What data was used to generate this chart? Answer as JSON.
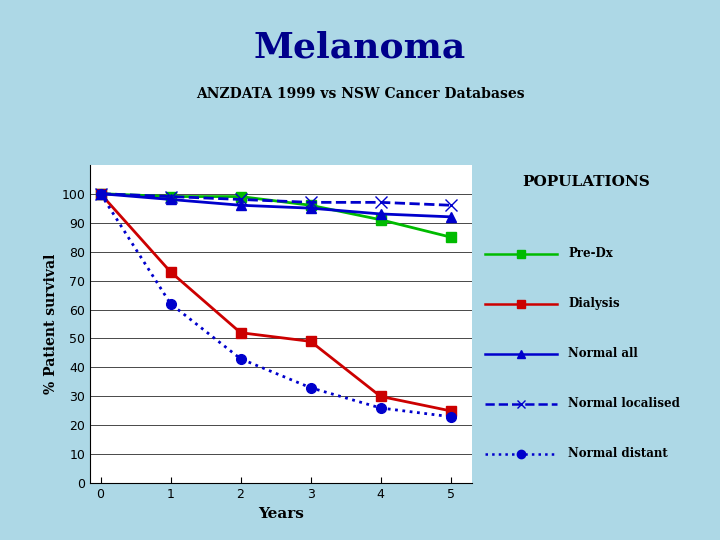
{
  "title_main": "Melanoma",
  "title_sub": "ANZDATA 1999 vs NSW Cancer Databases",
  "xlabel": "Years",
  "ylabel": "% Patient survival",
  "populations_label": "POPULATIONS",
  "background_outer": "#add8e6",
  "background_title_box": "#ffffff",
  "background_chart": "#ffffff",
  "title_color": "#00008B",
  "title_sub_color": "#000000",
  "ylim": [
    0,
    110
  ],
  "xlim": [
    -0.15,
    5.3
  ],
  "yticks": [
    0,
    10,
    20,
    30,
    40,
    50,
    60,
    70,
    80,
    90,
    100
  ],
  "xticks": [
    0,
    1,
    2,
    3,
    4,
    5
  ],
  "series": {
    "pre_dx": {
      "x": [
        0,
        1,
        2,
        3,
        4,
        5
      ],
      "y": [
        100,
        99,
        99,
        96,
        91,
        85
      ],
      "color": "#00bb00",
      "marker": "s",
      "linestyle": "-",
      "linewidth": 2.0,
      "label": "Pre-Dx",
      "markersize": 7
    },
    "dialysis": {
      "x": [
        0,
        1,
        2,
        3,
        4,
        5
      ],
      "y": [
        100,
        73,
        52,
        49,
        30,
        25
      ],
      "color": "#cc0000",
      "marker": "s",
      "linestyle": "-",
      "linewidth": 2.0,
      "label": "Dialysis",
      "markersize": 7
    },
    "normal_all": {
      "x": [
        0,
        1,
        2,
        3,
        4,
        5
      ],
      "y": [
        100,
        98,
        96,
        95,
        93,
        92
      ],
      "color": "#0000cc",
      "marker": "^",
      "linestyle": "-",
      "linewidth": 2.0,
      "label": "Normal all",
      "markersize": 7
    },
    "normal_localised": {
      "x": [
        0,
        1,
        2,
        3,
        4,
        5
      ],
      "y": [
        100,
        99,
        98,
        97,
        97,
        96
      ],
      "color": "#0000cc",
      "marker": "x",
      "linestyle": "--",
      "linewidth": 2.0,
      "label": "Normal localised",
      "markersize": 9
    },
    "normal_distant": {
      "x": [
        0,
        1,
        2,
        3,
        4,
        5
      ],
      "y": [
        100,
        62,
        43,
        33,
        26,
        23
      ],
      "color": "#0000cc",
      "marker": "o",
      "linestyle": ":",
      "linewidth": 2.0,
      "label": "Normal distant",
      "markersize": 7
    }
  },
  "legend_items": [
    {
      "label": "Pre-Dx",
      "color": "#00bb00",
      "marker": "s",
      "linestyle": "-"
    },
    {
      "label": "Dialysis",
      "color": "#cc0000",
      "marker": "s",
      "linestyle": "-"
    },
    {
      "label": "Normal all",
      "color": "#0000cc",
      "marker": "^",
      "linestyle": "-"
    },
    {
      "label": "Normal localised",
      "color": "#0000cc",
      "marker": "x",
      "linestyle": "--"
    },
    {
      "label": "Normal distant",
      "color": "#0000cc",
      "marker": "o",
      "linestyle": ":"
    }
  ]
}
